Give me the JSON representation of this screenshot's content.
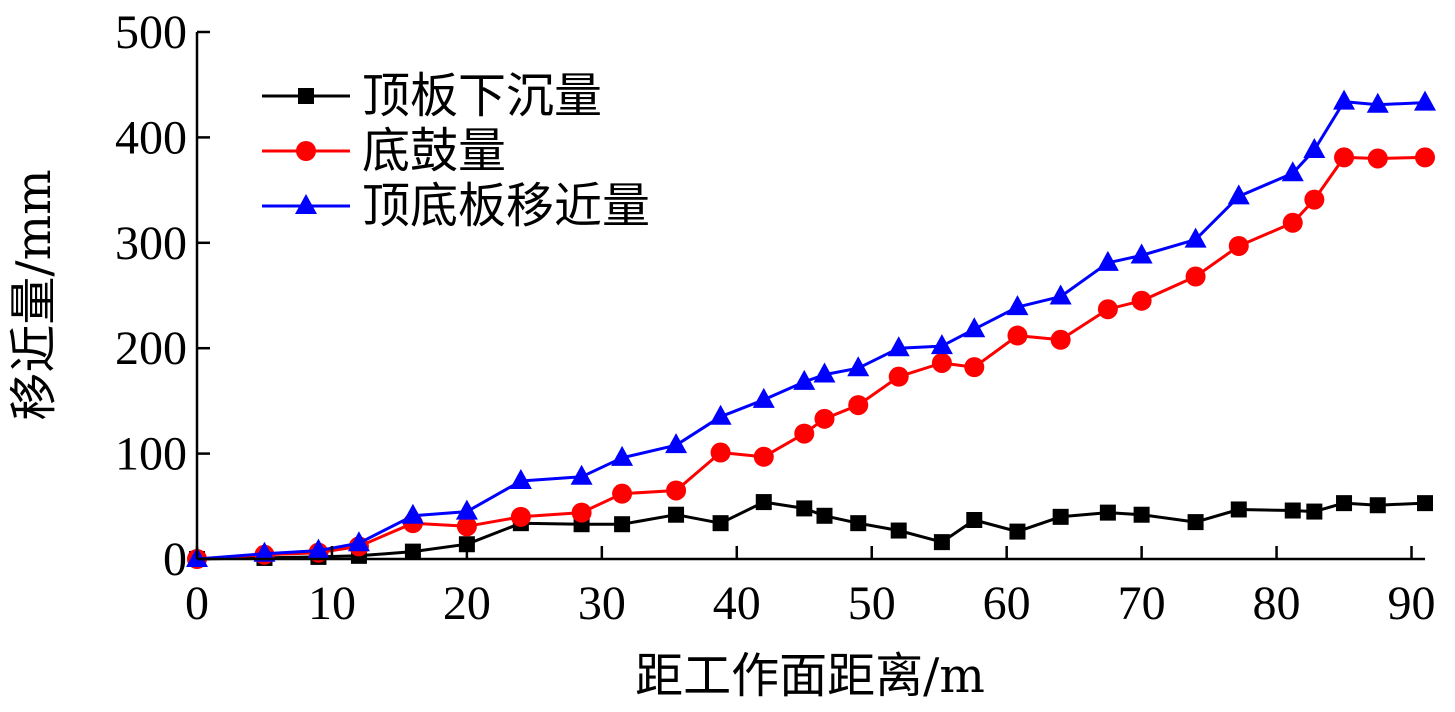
{
  "chart_data": {
    "type": "line",
    "title": "",
    "xlabel": "距工作面距离/m",
    "ylabel": "移近量/mm",
    "xlim": [
      0,
      91
    ],
    "ylim": [
      0,
      500
    ],
    "xticks": [
      0,
      10,
      20,
      30,
      40,
      50,
      60,
      70,
      80,
      90
    ],
    "yticks": [
      0,
      100,
      200,
      300,
      400,
      500
    ],
    "grid": false,
    "legend_position": "top-left",
    "series": [
      {
        "name": "顶板下沉量",
        "color": "#000000",
        "marker": "square",
        "x": [
          0,
          5,
          9,
          12,
          16,
          20,
          24,
          28.5,
          31.5,
          35.5,
          38.8,
          42,
          45,
          46.5,
          49,
          52,
          55.2,
          57.6,
          60.8,
          64,
          67.5,
          70,
          74,
          77.2,
          81.2,
          82.8,
          85,
          87.5,
          91
        ],
        "y": [
          0,
          1,
          2,
          3,
          7,
          14,
          34,
          33,
          33,
          42,
          34,
          54,
          48,
          41,
          34,
          27,
          16,
          37,
          26,
          40,
          44,
          42,
          35,
          47,
          46,
          45,
          53,
          51,
          53
        ]
      },
      {
        "name": "底鼓量",
        "color": "#ff0000",
        "marker": "circle",
        "x": [
          0,
          5,
          9,
          12,
          16,
          20,
          24,
          28.5,
          31.5,
          35.5,
          38.8,
          42,
          45,
          46.5,
          49,
          52,
          55.2,
          57.6,
          60.8,
          64,
          67.5,
          70,
          74,
          77.2,
          81.2,
          82.8,
          85,
          87.5,
          91
        ],
        "y": [
          0,
          4,
          6,
          12,
          34,
          31,
          40,
          44,
          62,
          65,
          101,
          97,
          119,
          133,
          146,
          173,
          186,
          182,
          212,
          208,
          237,
          245,
          268,
          297,
          319,
          341,
          381,
          380,
          381
        ]
      },
      {
        "name": "顶底板移近量",
        "color": "#0000ff",
        "marker": "triangle",
        "x": [
          0,
          5,
          9,
          12,
          16,
          20,
          24,
          28.5,
          31.5,
          35.5,
          38.8,
          42,
          45,
          46.5,
          49,
          52,
          55.2,
          57.6,
          60.8,
          64,
          67.5,
          70,
          74,
          77.2,
          81.2,
          82.8,
          85,
          87.5,
          91
        ],
        "y": [
          0,
          5,
          8,
          15,
          41,
          45,
          74,
          78,
          96,
          108,
          135,
          151,
          168,
          175,
          181,
          200,
          202,
          218,
          239,
          249,
          281,
          288,
          303,
          344,
          366,
          388,
          434,
          431,
          433
        ]
      }
    ]
  }
}
